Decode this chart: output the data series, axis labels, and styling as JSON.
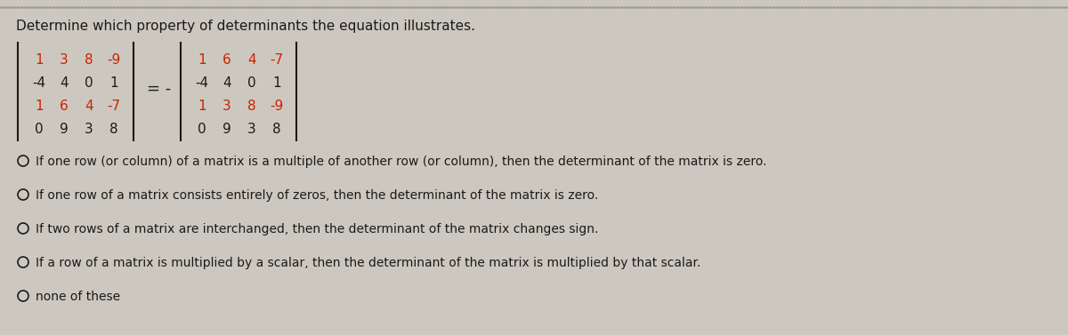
{
  "title": "Determine which property of determinants the equation illustrates.",
  "bg_color": "#cdc8bf",
  "title_color": "#1a1a1a",
  "title_fontsize": 11.0,
  "matrix1": [
    [
      "1",
      "3",
      "8",
      "-9"
    ],
    [
      "-4",
      "4",
      "0",
      "1"
    ],
    [
      "1",
      "6",
      "4",
      "-7"
    ],
    [
      "0",
      "9",
      "3",
      "8"
    ]
  ],
  "matrix2": [
    [
      "1",
      "6",
      "4",
      "-7"
    ],
    [
      "-4",
      "4",
      "0",
      "1"
    ],
    [
      "1",
      "3",
      "8",
      "-9"
    ],
    [
      "0",
      "9",
      "3",
      "8"
    ]
  ],
  "highlight_rows_m1": [
    0,
    2
  ],
  "highlight_rows_m2": [
    0,
    2
  ],
  "highlight_color": "#cc2200",
  "normal_color": "#1a1a1a",
  "equals_sign": "= -",
  "options": [
    "If one row (or column) of a matrix is a multiple of another row (or column), then the determinant of the matrix is zero.",
    "If one row of a matrix consists entirely of zeros, then the determinant of the matrix is zero.",
    "If two rows of a matrix are interchanged, then the determinant of the matrix changes sign.",
    "If a row of a matrix is multiplied by a scalar, then the determinant of the matrix is multiplied by that scalar.",
    "none of these"
  ],
  "option_fontsize": 10.0,
  "matrix_fontsize": 11.0,
  "top_border_color": "#999999"
}
